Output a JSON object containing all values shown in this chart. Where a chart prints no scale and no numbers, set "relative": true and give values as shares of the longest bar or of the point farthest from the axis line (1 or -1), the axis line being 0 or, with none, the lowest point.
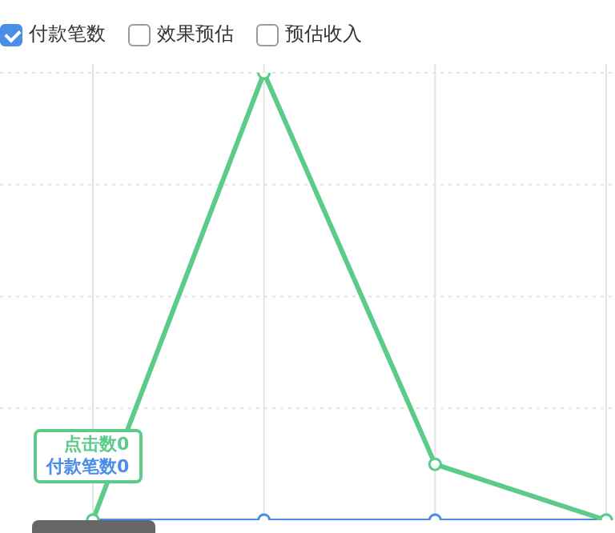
{
  "chart_data": {
    "type": "line",
    "relative": true,
    "categories": [
      null,
      null,
      null,
      null
    ],
    "series": [
      {
        "name": "付款笔数",
        "color": "#4a8ee6",
        "values": [
          0,
          0,
          0,
          0
        ]
      },
      {
        "color": "#5ccb8a",
        "values": [
          0,
          1,
          0.125,
          0
        ]
      }
    ],
    "annotations": [
      "效果预估",
      "预估收入",
      "点击数0",
      "付款笔数0"
    ],
    "legend": "top left",
    "grid": true,
    "marker": "circle"
  }
}
